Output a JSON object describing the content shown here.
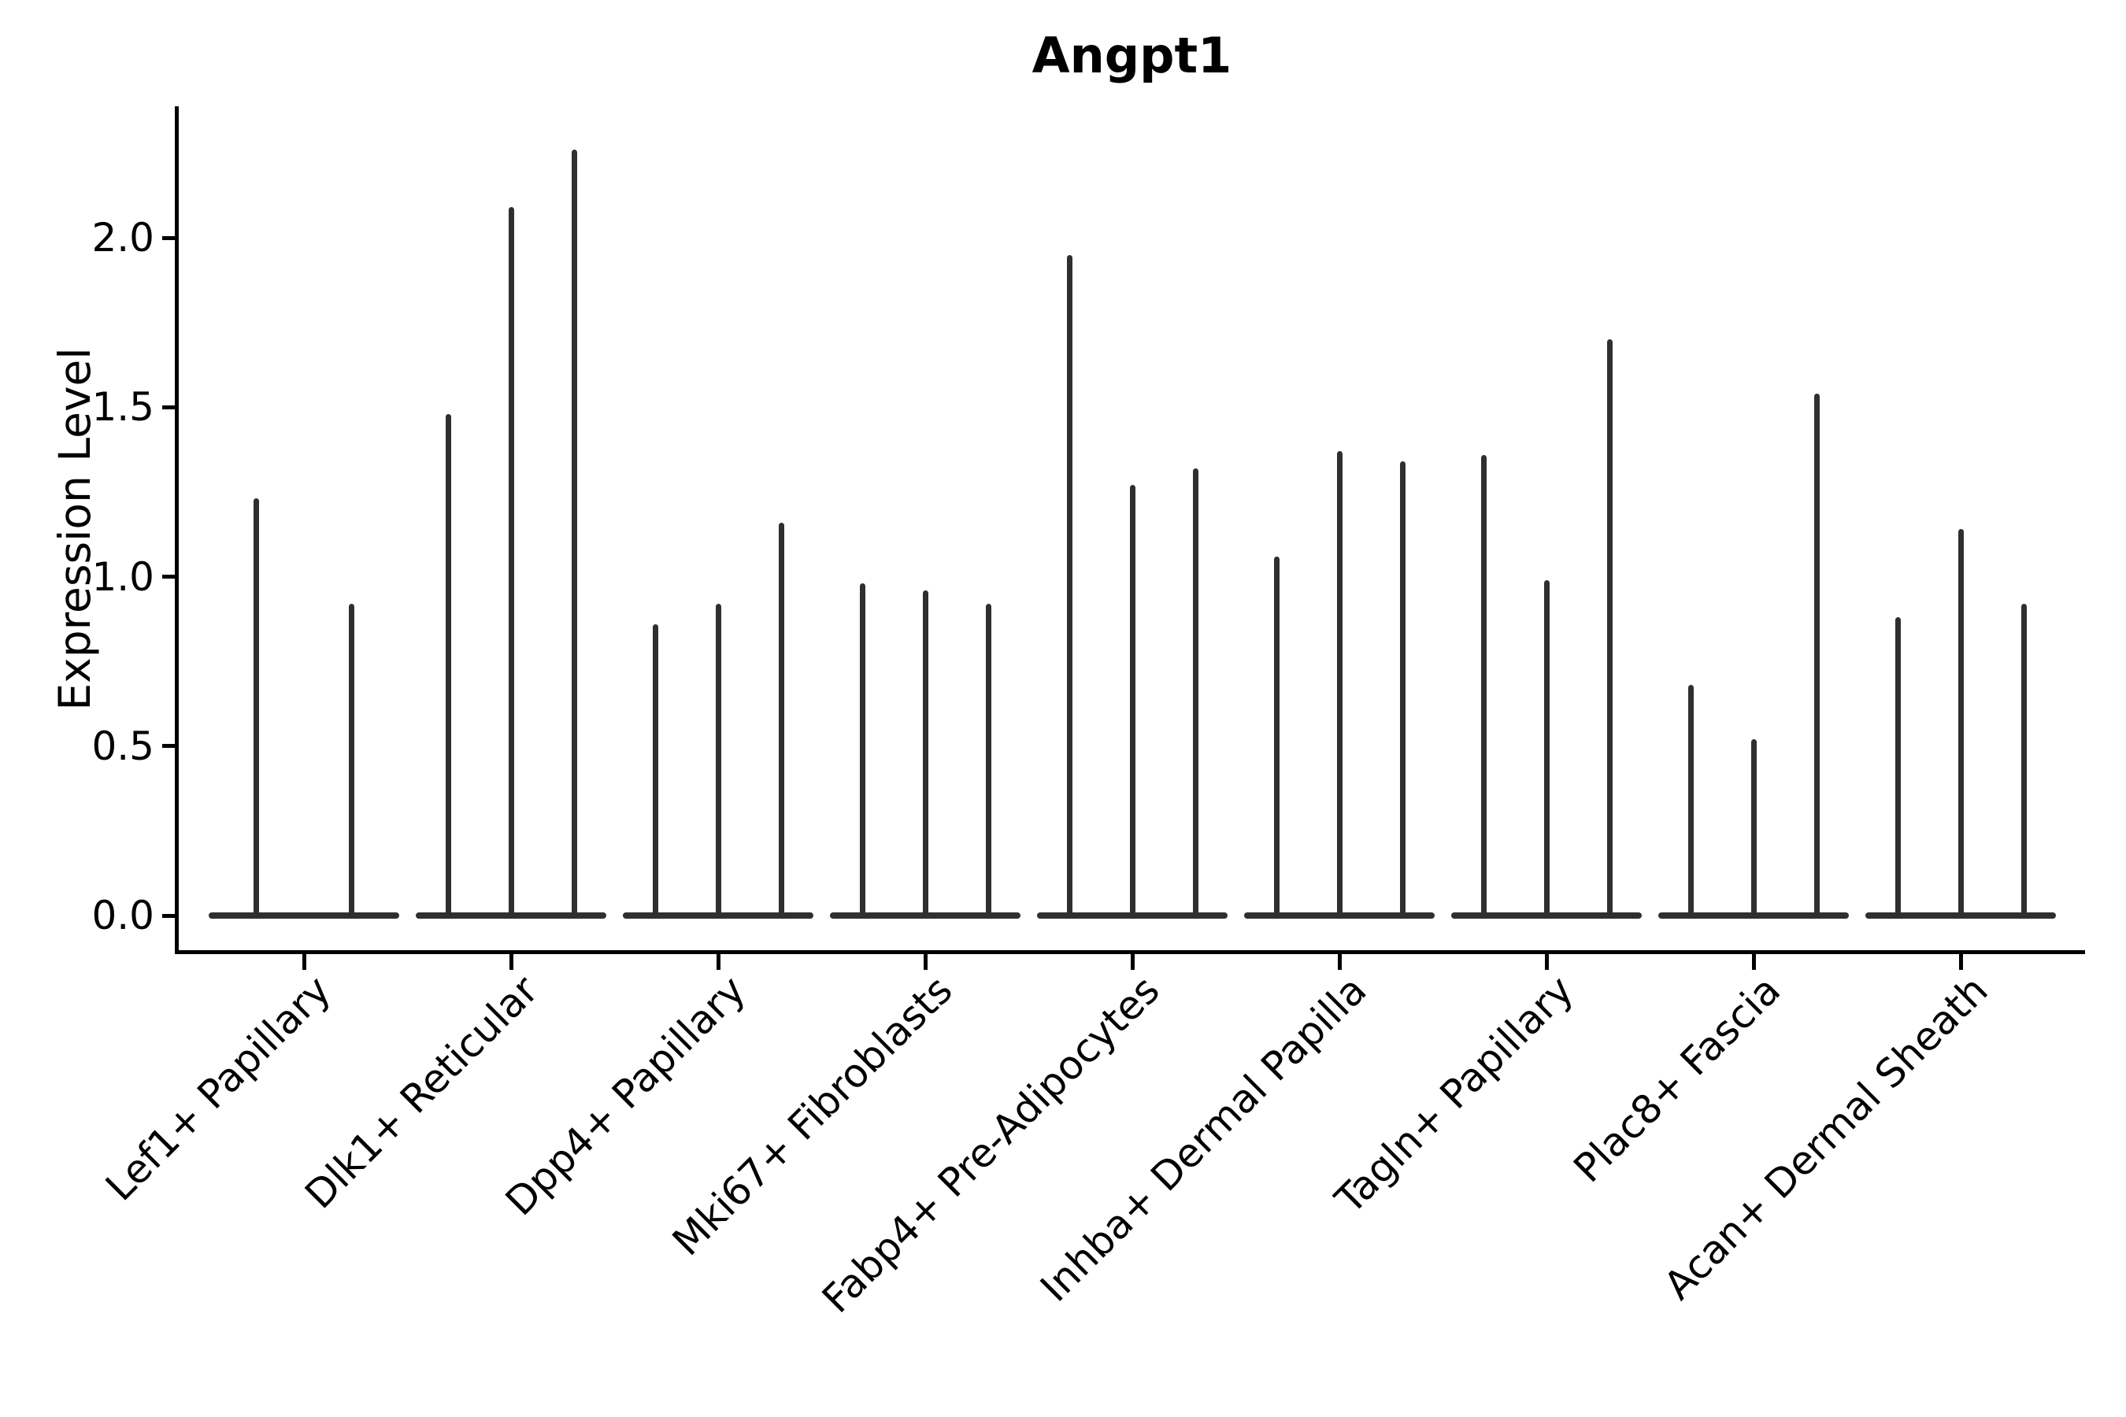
{
  "title": "Angpt1",
  "y_axis": {
    "label": "Expression Level",
    "tick_labels": [
      "0.0",
      "0.5",
      "1.0",
      "1.5",
      "2.0"
    ]
  },
  "x_axis": {
    "tick_labels": [
      "Lef1+ Papillary",
      "Dlk1+ Reticular",
      "Dpp4+ Papillary",
      "Mki67+ Fibroblasts",
      "Fabp4+ Pre-Adipocytes",
      "Inhba+ Dermal Papilla",
      "Tagln+ Papillary",
      "Plac8+ Fascia",
      "Acan+ Dermal Sheath"
    ]
  },
  "chart_data": {
    "type": "violin",
    "title": "Angpt1",
    "xlabel": "",
    "ylabel": "Expression Level",
    "ylim": [
      -0.07,
      2.39
    ],
    "yticks": [
      0.0,
      0.5,
      1.0,
      1.5,
      2.0
    ],
    "grid": false,
    "legend": "none",
    "violin_style": "needle violins: wide flat base at expression 0, thin vertical spike rising to the maximum expression value",
    "colors": {
      "violin": "#2f2f2f",
      "axis": "#000000",
      "background": "#ffffff",
      "text": "#000000"
    },
    "categories": [
      "Lef1+ Papillary",
      "Dlk1+ Reticular",
      "Dpp4+ Papillary",
      "Mki67+ Fibroblasts",
      "Fabp4+ Pre-Adipocytes",
      "Inhba+ Dermal Papilla",
      "Tagln+ Papillary",
      "Plac8+ Fascia",
      "Acan+ Dermal Sheath"
    ],
    "groups": [
      {
        "category": "Lef1+ Papillary",
        "violin_max_expression": [
          1.23,
          0.92
        ]
      },
      {
        "category": "Dlk1+ Reticular",
        "violin_max_expression": [
          1.48,
          2.09,
          2.26
        ]
      },
      {
        "category": "Dpp4+ Papillary",
        "violin_max_expression": [
          0.86,
          0.92,
          1.16
        ]
      },
      {
        "category": "Mki67+ Fibroblasts",
        "violin_max_expression": [
          0.98,
          0.96,
          0.92
        ]
      },
      {
        "category": "Fabp4+ Pre-Adipocytes",
        "violin_max_expression": [
          1.95,
          1.27,
          1.32
        ]
      },
      {
        "category": "Inhba+ Dermal Papilla",
        "violin_max_expression": [
          1.06,
          1.37,
          1.34
        ]
      },
      {
        "category": "Tagln+ Papillary",
        "violin_max_expression": [
          1.36,
          0.99,
          1.7
        ]
      },
      {
        "category": "Plac8+ Fascia",
        "violin_max_expression": [
          0.68,
          0.52,
          1.54
        ]
      },
      {
        "category": "Acan+ Dermal Sheath",
        "violin_max_expression": [
          0.88,
          1.14,
          0.92
        ]
      }
    ]
  }
}
